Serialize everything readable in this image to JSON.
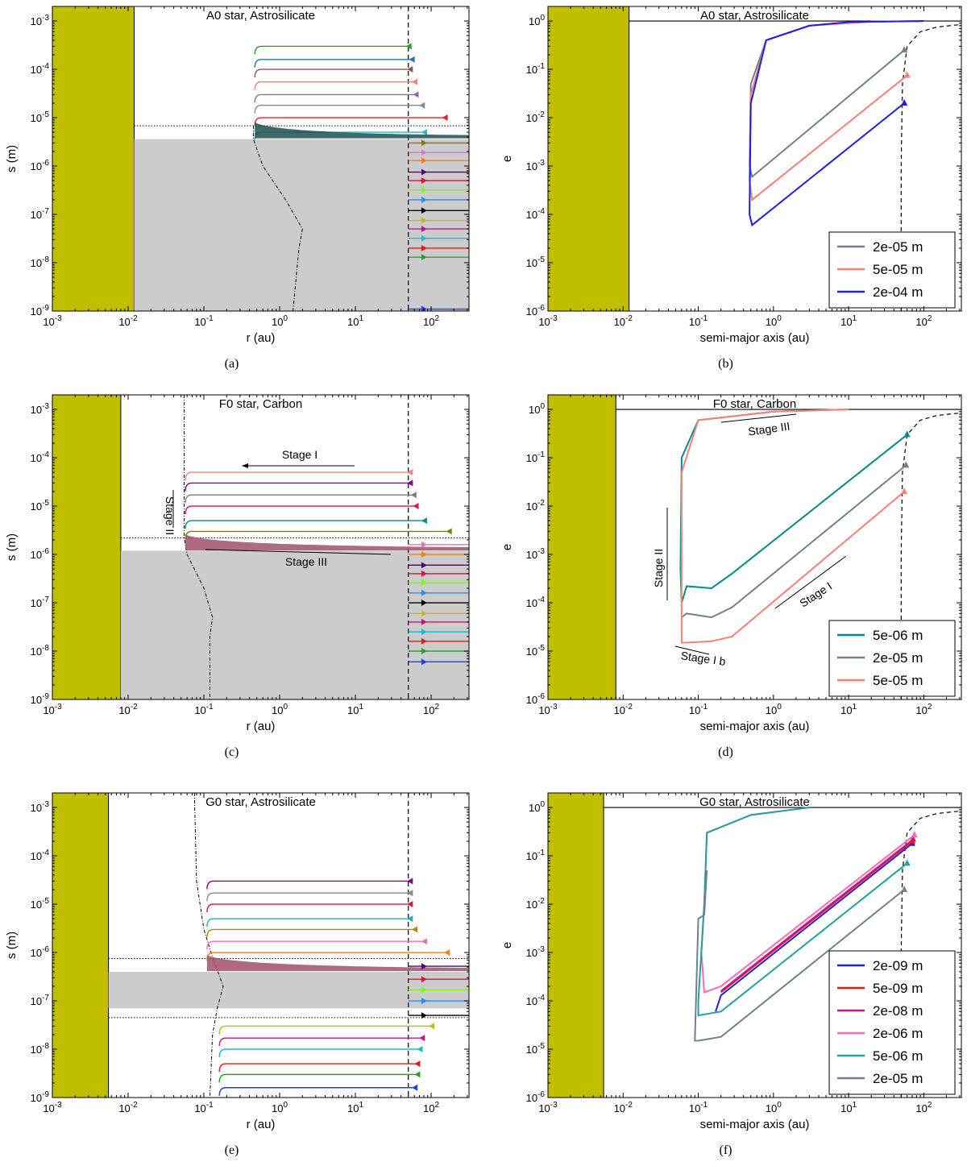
{
  "colors": {
    "star": "#bfbf00",
    "grey": "#cccccc"
  },
  "chart_data": [
    {
      "id": "a",
      "type": "line",
      "kind": "size",
      "title": "A0 star, Astrosilicate",
      "xlabel": "r (au)",
      "ylabel": "s (m)",
      "caption": "(a)",
      "xlim": [
        0.001,
        316
      ],
      "ylim": [
        1e-09,
        0.002
      ],
      "xticks": [
        "10-3",
        "10-2",
        "10-1",
        "100",
        "101",
        "102"
      ],
      "yticks": [
        "10-9",
        "10-8",
        "10-7",
        "10-6",
        "10-5",
        "10-4",
        "10-3"
      ],
      "star_edge": 0.012,
      "grey_band": [
        1e-09,
        3.6e-06
      ],
      "blowout_dotted": 6.8e-06,
      "dust_line_r": 50,
      "bound_start": [
        {
          "s": 0.0003,
          "r": 50,
          "c": "#2ca02c"
        },
        {
          "s": 0.00016,
          "r": 55,
          "c": "#1f77b4"
        },
        {
          "s": 0.0001,
          "r": 52,
          "c": "#8c564b"
        },
        {
          "s": 5.5e-05,
          "r": 60,
          "c": "#f08080"
        },
        {
          "s": 3e-05,
          "r": 62,
          "c": "#9467bd"
        },
        {
          "s": 1.8e-05,
          "r": 75,
          "c": "#7f8c9a"
        },
        {
          "s": 1e-05,
          "r": 150,
          "c": "#d62728"
        },
        {
          "s": 5e-06,
          "r": 80,
          "c": "#17becf"
        }
      ],
      "bound_end_r": 0.47,
      "unbound": [
        {
          "s": 3e-06,
          "c": "#808000"
        },
        {
          "s": 1.9e-06,
          "c": "#e377c2"
        },
        {
          "s": 1.3e-06,
          "c": "#ff7f0e"
        },
        {
          "s": 7.5e-07,
          "c": "#4b0082"
        },
        {
          "s": 5e-07,
          "c": "#dc143c"
        },
        {
          "s": 3.2e-07,
          "c": "#7cfc00"
        },
        {
          "s": 2e-07,
          "c": "#1e90ff"
        },
        {
          "s": 1.2e-07,
          "c": "#000000"
        },
        {
          "s": 7.5e-08,
          "c": "#bcbd22"
        },
        {
          "s": 5e-08,
          "c": "#c71585"
        },
        {
          "s": 3.2e-08,
          "c": "#17becf"
        },
        {
          "s": 2e-08,
          "c": "#e41a1c"
        },
        {
          "s": 1.3e-08,
          "c": "#2ca02c"
        },
        {
          "s": 1.1e-09,
          "c": "#1f3fff"
        }
      ],
      "sublimation_curve": [
        [
          0.45,
          6.8e-06
        ],
        [
          0.45,
          3.6e-06
        ],
        [
          0.6,
          1e-06
        ],
        [
          1.2,
          2e-07
        ],
        [
          2.0,
          5e-08
        ],
        [
          1.8,
          2e-08
        ],
        [
          1.5,
          1e-09
        ]
      ]
    },
    {
      "id": "b",
      "type": "line",
      "kind": "ecc",
      "title": "A0 star, Astrosilicate",
      "xlabel": "semi-major axis (au)",
      "ylabel": "e",
      "caption": "(b)",
      "xlim": [
        0.001,
        316
      ],
      "ylim": [
        1e-06,
        2
      ],
      "xticks": [
        "10-3",
        "10-2",
        "10-1",
        "100",
        "101",
        "102"
      ],
      "yticks": [
        "10-6",
        "10-5",
        "10-4",
        "10-3",
        "10-2",
        "10-1",
        "100"
      ],
      "star_edge": 0.012,
      "series": [
        {
          "name": "2e-05 m",
          "color": "#708090",
          "points": [
            [
              55,
              0.25
            ],
            [
              0.52,
              0.0006
            ],
            [
              0.48,
              0.001
            ],
            [
              0.5,
              0.05
            ],
            [
              0.8,
              0.4
            ],
            [
              3,
              0.8
            ],
            [
              20,
              0.97
            ],
            [
              100,
              1
            ]
          ]
        },
        {
          "name": "5e-05 m",
          "color": "#fa8072",
          "points": [
            [
              60,
              0.075
            ],
            [
              0.52,
              0.0002
            ],
            [
              0.48,
              0.0005
            ],
            [
              0.5,
              0.03
            ],
            [
              0.8,
              0.4
            ],
            [
              3,
              0.8
            ],
            [
              20,
              0.97
            ],
            [
              100,
              1
            ]
          ]
        },
        {
          "name": "2e-04 m",
          "color": "#1f1fe0",
          "points": [
            [
              55,
              0.02
            ],
            [
              0.52,
              6e-05
            ],
            [
              0.48,
              0.0001
            ],
            [
              0.5,
              0.02
            ],
            [
              0.8,
              0.4
            ],
            [
              3,
              0.8
            ],
            [
              10,
              0.95
            ],
            [
              100,
              1
            ]
          ]
        }
      ],
      "legend": [
        "2e-05 m",
        "5e-05 m",
        "2e-04 m"
      ]
    },
    {
      "id": "c",
      "type": "line",
      "kind": "size",
      "title": "F0 star, Carbon",
      "xlabel": "r (au)",
      "ylabel": "s (m)",
      "caption": "(c)",
      "xlim": [
        0.001,
        316
      ],
      "ylim": [
        1e-09,
        0.002
      ],
      "xticks": [
        "10-3",
        "10-2",
        "10-1",
        "100",
        "101",
        "102"
      ],
      "yticks": [
        "10-9",
        "10-8",
        "10-7",
        "10-6",
        "10-5",
        "10-4",
        "10-3"
      ],
      "star_edge": 0.008,
      "grey_band": [
        1e-09,
        1.2e-06
      ],
      "blowout_dotted": 2.2e-06,
      "dust_line_r": 50,
      "bound_start": [
        {
          "s": 5e-05,
          "r": 52,
          "c": "#fa8072"
        },
        {
          "s": 3e-05,
          "r": 52,
          "c": "#8b008b"
        },
        {
          "s": 1.7e-05,
          "r": 58,
          "c": "#708090"
        },
        {
          "s": 1e-05,
          "r": 62,
          "c": "#dc143c"
        },
        {
          "s": 5e-06,
          "r": 80,
          "c": "#008b8b"
        },
        {
          "s": 3e-06,
          "r": 170,
          "c": "#808000"
        }
      ],
      "bound_end_r": 0.057,
      "unbound": [
        {
          "s": 1.6e-06,
          "c": "#ff69b4"
        },
        {
          "s": 1e-06,
          "c": "#ff7f0e"
        },
        {
          "s": 6e-07,
          "c": "#4b0082"
        },
        {
          "s": 4e-07,
          "c": "#dc143c"
        },
        {
          "s": 2.6e-07,
          "c": "#7cfc00"
        },
        {
          "s": 1.6e-07,
          "c": "#1e90ff"
        },
        {
          "s": 1e-07,
          "c": "#000000"
        },
        {
          "s": 6e-08,
          "c": "#bcbd22"
        },
        {
          "s": 4e-08,
          "c": "#c71585"
        },
        {
          "s": 2.5e-08,
          "c": "#17becf"
        },
        {
          "s": 1.6e-08,
          "c": "#e41a1c"
        },
        {
          "s": 1e-08,
          "c": "#2ca02c"
        },
        {
          "s": 6e-09,
          "c": "#1f3fff"
        }
      ],
      "sublimation_curve": [
        [
          0.055,
          0.002
        ],
        [
          0.055,
          2.2e-06
        ],
        [
          0.06,
          1e-06
        ],
        [
          0.1,
          2e-07
        ],
        [
          0.13,
          5e-08
        ],
        [
          0.12,
          2e-08
        ],
        [
          0.12,
          1e-09
        ]
      ],
      "annotations": [
        "Stage I",
        "Stage II",
        "Stage III"
      ]
    },
    {
      "id": "d",
      "type": "line",
      "kind": "ecc",
      "title": "F0 star, Carbon",
      "xlabel": "semi-major axis (au)",
      "ylabel": "e",
      "caption": "(d)",
      "xlim": [
        0.001,
        316
      ],
      "ylim": [
        1e-06,
        2
      ],
      "xticks": [
        "10-3",
        "10-2",
        "10-1",
        "100",
        "101",
        "102"
      ],
      "yticks": [
        "10-6",
        "10-5",
        "10-4",
        "10-3",
        "10-2",
        "10-1",
        "100"
      ],
      "star_edge": 0.008,
      "series": [
        {
          "name": "5e-06 m",
          "color": "#008b8b",
          "points": [
            [
              60,
              0.3
            ],
            [
              0.28,
              0.0004
            ],
            [
              0.15,
              0.0002
            ],
            [
              0.07,
              0.00022
            ],
            [
              0.06,
              0.0001
            ],
            [
              0.058,
              0.0005
            ],
            [
              0.06,
              0.1
            ],
            [
              0.1,
              0.6
            ],
            [
              1,
              0.9
            ],
            [
              10,
              1
            ]
          ]
        },
        {
          "name": "2e-05 m",
          "color": "#708090",
          "points": [
            [
              58,
              0.07
            ],
            [
              0.28,
              8e-05
            ],
            [
              0.15,
              5e-05
            ],
            [
              0.07,
              6e-05
            ],
            [
              0.06,
              5e-05
            ]
          ]
        },
        {
          "name": "5e-05 m",
          "color": "#fa8072",
          "points": [
            [
              55,
              0.02
            ],
            [
              0.28,
              2e-05
            ],
            [
              0.15,
              1.6e-05
            ],
            [
              0.07,
              1.5e-05
            ],
            [
              0.06,
              1.5e-05
            ],
            [
              0.06,
              0.05
            ],
            [
              0.1,
              0.6
            ],
            [
              1,
              0.9
            ],
            [
              10,
              1
            ]
          ]
        }
      ],
      "legend": [
        "5e-06 m",
        "2e-05 m",
        "5e-05 m"
      ],
      "annotations": [
        "Stage III",
        "Stage II",
        "Stage I",
        "Stage I b"
      ]
    },
    {
      "id": "e",
      "type": "line",
      "kind": "size",
      "title": "G0 star, Astrosilicate",
      "xlabel": "r (au)",
      "ylabel": "s (m)",
      "caption": "(e)",
      "xlim": [
        0.001,
        316
      ],
      "ylim": [
        1e-09,
        0.002
      ],
      "xticks": [
        "10-3",
        "10-2",
        "10-1",
        "100",
        "101",
        "102"
      ],
      "yticks": [
        "10-9",
        "10-8",
        "10-7",
        "10-6",
        "10-5",
        "10-4",
        "10-3"
      ],
      "star_edge": 0.0055,
      "grey_band": [
        7e-08,
        4e-07
      ],
      "blowout_dotted": 7.5e-07,
      "lower_dotted": 4.5e-08,
      "dust_line_r": 50,
      "bound_start": [
        {
          "s": 3e-05,
          "r": 52,
          "c": "#8b008b"
        },
        {
          "s": 1.7e-05,
          "r": 52,
          "c": "#7f8c9a"
        },
        {
          "s": 1e-05,
          "r": 52,
          "c": "#dc143c"
        },
        {
          "s": 5e-06,
          "r": 52,
          "c": "#20b2aa"
        },
        {
          "s": 3e-06,
          "r": 60,
          "c": "#b8860b"
        },
        {
          "s": 1.7e-06,
          "r": 80,
          "c": "#ff69b4"
        },
        {
          "s": 1e-06,
          "r": 160,
          "c": "#ff7f0e"
        }
      ],
      "bound_end_r": 0.11,
      "lower_bound": [
        {
          "s": 3e-08,
          "r": 100,
          "c": "#bcbd22"
        },
        {
          "s": 1.7e-08,
          "r": 75,
          "c": "#c71585"
        },
        {
          "s": 1e-08,
          "r": 70,
          "c": "#17becf"
        },
        {
          "s": 5e-09,
          "r": 65,
          "c": "#e41a1c"
        },
        {
          "s": 3e-09,
          "r": 65,
          "c": "#2ca02c"
        },
        {
          "s": 1.6e-09,
          "r": 60,
          "c": "#1f3fff"
        }
      ],
      "unbound": [
        {
          "s": 5.2e-07,
          "c": "#4b0082"
        },
        {
          "s": 2.8e-07,
          "c": "#dc143c"
        },
        {
          "s": 1.7e-07,
          "c": "#7cfc00"
        },
        {
          "s": 1e-07,
          "c": "#1e90ff"
        },
        {
          "s": 5e-08,
          "c": "#000000"
        }
      ],
      "sublimation_curve": [
        [
          0.075,
          0.002
        ],
        [
          0.08,
          3e-05
        ],
        [
          0.1,
          3e-06
        ],
        [
          0.13,
          8e-07
        ],
        [
          0.18,
          2e-07
        ],
        [
          0.15,
          7e-08
        ],
        [
          0.13,
          2e-08
        ],
        [
          0.12,
          1e-09
        ]
      ]
    },
    {
      "id": "f",
      "type": "line",
      "kind": "ecc",
      "title": "G0 star, Astrosilicate",
      "xlabel": "semi-major axis (au)",
      "ylabel": "e",
      "caption": "(f)",
      "xlim": [
        0.001,
        316
      ],
      "ylim": [
        1e-06,
        2
      ],
      "xticks": [
        "10-3",
        "10-2",
        "10-1",
        "100",
        "101",
        "102"
      ],
      "yticks": [
        "10-6",
        "10-5",
        "10-4",
        "10-3",
        "10-2",
        "10-1",
        "100"
      ],
      "star_edge": 0.0055,
      "series": [
        {
          "name": "2e-09 m",
          "color": "#1f1fe0",
          "points": [
            [
              70,
              0.18
            ],
            [
              0.2,
              0.00013
            ],
            [
              0.17,
              6e-05
            ]
          ]
        },
        {
          "name": "5e-09 m",
          "color": "#e41a1c",
          "points": [
            [
              70,
              0.2
            ],
            [
              0.2,
              0.00015
            ]
          ]
        },
        {
          "name": "2e-08 m",
          "color": "#c71585",
          "points": [
            [
              72,
              0.22
            ],
            [
              0.2,
              0.00016
            ]
          ]
        },
        {
          "name": "2e-06 m",
          "color": "#ff69b4",
          "points": [
            [
              75,
              0.27
            ],
            [
              0.2,
              0.0002
            ],
            [
              0.12,
              0.00015
            ],
            [
              0.11,
              0.001
            ],
            [
              0.12,
              0.01
            ],
            [
              0.13,
              0.3
            ],
            [
              0.5,
              0.7
            ],
            [
              3,
              1
            ]
          ]
        },
        {
          "name": "5e-06 m",
          "color": "#20a0a0",
          "points": [
            [
              60,
              0.07
            ],
            [
              0.2,
              6e-05
            ],
            [
              0.1,
              5e-05
            ],
            [
              0.1,
              0.0001
            ],
            [
              0.12,
              0.01
            ],
            [
              0.13,
              0.3
            ],
            [
              0.5,
              0.7
            ],
            [
              3,
              1
            ]
          ]
        },
        {
          "name": "2e-05 m",
          "color": "#708090",
          "points": [
            [
              55,
              0.02
            ],
            [
              0.2,
              1.8e-05
            ],
            [
              0.1,
              1.5e-05
            ],
            [
              0.09,
              1.5e-05
            ],
            [
              0.1,
              0.005
            ],
            [
              0.12,
              0.006
            ],
            [
              0.13,
              0.05
            ]
          ]
        }
      ],
      "legend": [
        "2e-09 m",
        "5e-09 m",
        "2e-08 m",
        "2e-06 m",
        "5e-06 m",
        "2e-05 m"
      ]
    }
  ]
}
